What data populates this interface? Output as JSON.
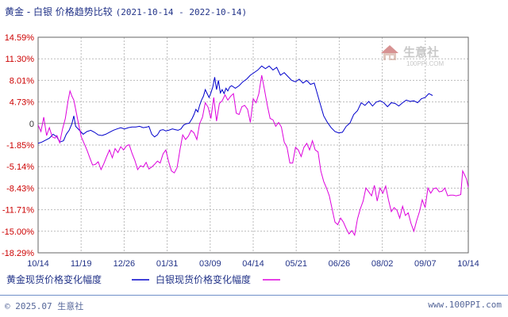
{
  "header": {
    "title": "黄金 - 白银 价格趋势比较",
    "date_range": "(2021-10-14 - 2022-10-14)"
  },
  "footer": {
    "copyright": "© 2025.07 生意社",
    "website": "www.100PPI.com"
  },
  "watermark": {
    "brand": "生意社",
    "url": "100PPI.COM"
  },
  "colors": {
    "gold": "#0000cc",
    "silver": "#dd00dd",
    "tick_label": "#cc0000",
    "grid": "#bbbbbb",
    "axis": "#666666"
  },
  "chart_data": {
    "type": "line",
    "title": "黄金 - 白银 价格趋势比较",
    "xlabel": "",
    "ylabel": "",
    "ylim": [
      -18.29,
      14.59
    ],
    "yticks": [
      "14.59%",
      "11.30%",
      "8.01%",
      "4.73%",
      "0",
      "-1.85%",
      "-5.14%",
      "-8.43%",
      "-11.71%",
      "-15.00%",
      "-18.29%"
    ],
    "x_tick_labels": [
      "10/14",
      "11/19",
      "12/26",
      "01/31",
      "03/09",
      "04/14",
      "05/21",
      "06/26",
      "08/02",
      "09/07",
      "10/14"
    ],
    "legend_position": "bottom-left",
    "grid": true,
    "series": [
      {
        "name": "黄金现货价格变化幅度",
        "values": [
          [
            0,
            -1.6
          ],
          [
            4,
            -1.4
          ],
          [
            8,
            -1.1
          ],
          [
            12,
            -0.8
          ],
          [
            16,
            -0.2
          ],
          [
            20,
            -0.6
          ],
          [
            23,
            -1.4
          ],
          [
            27,
            -1.2
          ],
          [
            30,
            -0.2
          ],
          [
            33,
            0.4
          ],
          [
            36,
            1.4
          ],
          [
            38,
            2.6
          ],
          [
            40,
            1.0
          ],
          [
            44,
            0.4
          ],
          [
            48,
            -0.2
          ],
          [
            52,
            0.2
          ],
          [
            56,
            0.4
          ],
          [
            60,
            0.1
          ],
          [
            64,
            -0.3
          ],
          [
            68,
            -0.4
          ],
          [
            72,
            -0.2
          ],
          [
            76,
            0.1
          ],
          [
            80,
            0.4
          ],
          [
            84,
            0.6
          ],
          [
            88,
            0.8
          ],
          [
            92,
            0.6
          ],
          [
            96,
            0.8
          ],
          [
            100,
            0.9
          ],
          [
            104,
            0.9
          ],
          [
            108,
            1.0
          ],
          [
            112,
            0.8
          ],
          [
            116,
            0.9
          ],
          [
            118,
            1.0
          ],
          [
            121,
            -0.2
          ],
          [
            124,
            -0.6
          ],
          [
            127,
            -0.3
          ],
          [
            130,
            0.4
          ],
          [
            133,
            0.5
          ],
          [
            136,
            0.3
          ],
          [
            139,
            0.4
          ],
          [
            143,
            0.6
          ],
          [
            146,
            0.5
          ],
          [
            149,
            0.4
          ],
          [
            152,
            0.6
          ],
          [
            155,
            1.2
          ],
          [
            158,
            1.4
          ],
          [
            161,
            1.5
          ],
          [
            164,
            2.2
          ],
          [
            166,
            2.8
          ],
          [
            168,
            3.6
          ],
          [
            170,
            3.2
          ],
          [
            172,
            4.2
          ],
          [
            174,
            5.0
          ],
          [
            176,
            5.6
          ],
          [
            178,
            6.6
          ],
          [
            180,
            6.0
          ],
          [
            182,
            5.4
          ],
          [
            184,
            6.1
          ],
          [
            186,
            7.0
          ],
          [
            188,
            8.5
          ],
          [
            190,
            6.6
          ],
          [
            192,
            8.0
          ],
          [
            194,
            6.1
          ],
          [
            196,
            6.6
          ],
          [
            198,
            6.0
          ],
          [
            200,
            6.8
          ],
          [
            202,
            6.4
          ],
          [
            204,
            7.0
          ],
          [
            206,
            7.2
          ],
          [
            210,
            6.8
          ],
          [
            214,
            7.2
          ],
          [
            218,
            7.8
          ],
          [
            222,
            8.2
          ],
          [
            226,
            8.8
          ],
          [
            230,
            9.2
          ],
          [
            234,
            9.6
          ],
          [
            238,
            10.2
          ],
          [
            242,
            9.8
          ],
          [
            246,
            10.2
          ],
          [
            250,
            9.6
          ],
          [
            254,
            10.0
          ],
          [
            258,
            8.8
          ],
          [
            262,
            9.2
          ],
          [
            266,
            8.6
          ],
          [
            270,
            8.0
          ],
          [
            274,
            7.8
          ],
          [
            278,
            8.2
          ],
          [
            282,
            7.6
          ],
          [
            286,
            8.0
          ],
          [
            290,
            7.4
          ],
          [
            294,
            7.6
          ],
          [
            296,
            6.6
          ],
          [
            300,
            4.6
          ],
          [
            304,
            2.6
          ],
          [
            308,
            1.6
          ],
          [
            312,
            0.8
          ],
          [
            316,
            0.2
          ],
          [
            320,
            0.0
          ],
          [
            324,
            0.1
          ],
          [
            328,
            1.0
          ],
          [
            332,
            1.5
          ],
          [
            336,
            2.8
          ],
          [
            340,
            3.4
          ],
          [
            344,
            4.6
          ],
          [
            348,
            4.2
          ],
          [
            352,
            4.8
          ],
          [
            356,
            4.1
          ],
          [
            360,
            4.7
          ],
          [
            364,
            4.9
          ],
          [
            368,
            4.6
          ],
          [
            372,
            4.0
          ],
          [
            376,
            4.6
          ],
          [
            380,
            4.5
          ],
          [
            384,
            4.1
          ],
          [
            388,
            4.6
          ],
          [
            392,
            5.0
          ],
          [
            396,
            4.8
          ],
          [
            400,
            4.9
          ],
          [
            404,
            4.6
          ],
          [
            408,
            5.2
          ],
          [
            412,
            5.4
          ],
          [
            416,
            6.0
          ],
          [
            420,
            5.7
          ]
        ]
      },
      {
        "name": "白银现货价格变化幅度",
        "values": [
          [
            0,
            1.2
          ],
          [
            3,
            0.2
          ],
          [
            6,
            2.4
          ],
          [
            9,
            -0.4
          ],
          [
            12,
            0.8
          ],
          [
            15,
            -0.6
          ],
          [
            18,
            -0.8
          ],
          [
            20,
            -0.4
          ],
          [
            23,
            -1.5
          ],
          [
            26,
            0.6
          ],
          [
            29,
            2.2
          ],
          [
            32,
            5.0
          ],
          [
            34,
            6.4
          ],
          [
            36,
            5.6
          ],
          [
            38,
            5.0
          ],
          [
            40,
            3.6
          ],
          [
            43,
            1.4
          ],
          [
            46,
            -0.6
          ],
          [
            49,
            -1.6
          ],
          [
            52,
            -2.6
          ],
          [
            55,
            -3.8
          ],
          [
            58,
            -4.9
          ],
          [
            61,
            -4.8
          ],
          [
            64,
            -4.4
          ],
          [
            67,
            -5.6
          ],
          [
            70,
            -4.7
          ],
          [
            73,
            -3.6
          ],
          [
            76,
            -2.6
          ],
          [
            79,
            -3.8
          ],
          [
            82,
            -2.4
          ],
          [
            85,
            -3.0
          ],
          [
            88,
            -2.1
          ],
          [
            91,
            -2.6
          ],
          [
            94,
            -2.0
          ],
          [
            97,
            -1.8
          ],
          [
            100,
            -3.1
          ],
          [
            103,
            -4.2
          ],
          [
            106,
            -5.6
          ],
          [
            109,
            -5.0
          ],
          [
            112,
            -5.2
          ],
          [
            115,
            -4.5
          ],
          [
            118,
            -5.5
          ],
          [
            121,
            -5.2
          ],
          [
            124,
            -4.8
          ],
          [
            127,
            -4.3
          ],
          [
            130,
            -4.6
          ],
          [
            133,
            -3.2
          ],
          [
            136,
            -2.6
          ],
          [
            139,
            -4.4
          ],
          [
            142,
            -5.8
          ],
          [
            145,
            -6.1
          ],
          [
            148,
            -5.3
          ],
          [
            151,
            -2.6
          ],
          [
            154,
            -0.3
          ],
          [
            157,
            -1.0
          ],
          [
            160,
            -0.5
          ],
          [
            163,
            0.4
          ],
          [
            166,
            0.0
          ],
          [
            169,
            -1.0
          ],
          [
            172,
            1.4
          ],
          [
            175,
            2.4
          ],
          [
            178,
            4.6
          ],
          [
            181,
            3.9
          ],
          [
            184,
            2.2
          ],
          [
            187,
            5.4
          ],
          [
            190,
            1.8
          ],
          [
            193,
            4.5
          ],
          [
            196,
            4.9
          ],
          [
            199,
            5.8
          ],
          [
            202,
            5.0
          ],
          [
            205,
            5.6
          ],
          [
            208,
            6.0
          ],
          [
            211,
            3.0
          ],
          [
            214,
            2.8
          ],
          [
            217,
            4.0
          ],
          [
            220,
            4.2
          ],
          [
            223,
            3.6
          ],
          [
            226,
            1.6
          ],
          [
            229,
            5.2
          ],
          [
            232,
            4.6
          ],
          [
            235,
            6.0
          ],
          [
            238,
            8.8
          ],
          [
            241,
            6.6
          ],
          [
            244,
            4.2
          ],
          [
            247,
            2.2
          ],
          [
            250,
            2.0
          ],
          [
            253,
            1.0
          ],
          [
            256,
            1.6
          ],
          [
            259,
            0.9
          ],
          [
            262,
            -1.4
          ],
          [
            265,
            -2.2
          ],
          [
            268,
            -4.6
          ],
          [
            271,
            -4.6
          ],
          [
            274,
            -2.2
          ],
          [
            277,
            -2.6
          ],
          [
            280,
            -3.6
          ],
          [
            283,
            -2.2
          ],
          [
            286,
            -1.6
          ],
          [
            289,
            -2.6
          ],
          [
            292,
            -1.2
          ],
          [
            295,
            -2.6
          ],
          [
            298,
            -2.9
          ],
          [
            301,
            -5.8
          ],
          [
            304,
            -7.4
          ],
          [
            307,
            -8.4
          ],
          [
            310,
            -9.6
          ],
          [
            313,
            -11.6
          ],
          [
            316,
            -13.6
          ],
          [
            319,
            -14.0
          ],
          [
            322,
            -13.0
          ],
          [
            325,
            -13.6
          ],
          [
            328,
            -14.6
          ],
          [
            331,
            -15.4
          ],
          [
            334,
            -14.9
          ],
          [
            337,
            -15.6
          ],
          [
            340,
            -13.1
          ],
          [
            343,
            -11.6
          ],
          [
            346,
            -10.4
          ],
          [
            349,
            -8.4
          ],
          [
            352,
            -9.0
          ],
          [
            355,
            -9.6
          ],
          [
            358,
            -8.0
          ],
          [
            361,
            -10.4
          ],
          [
            364,
            -8.4
          ],
          [
            367,
            -9.2
          ],
          [
            370,
            -8.1
          ],
          [
            373,
            -10.2
          ],
          [
            376,
            -12.0
          ],
          [
            379,
            -11.4
          ],
          [
            382,
            -11.8
          ],
          [
            385,
            -13.0
          ],
          [
            388,
            -11.2
          ],
          [
            391,
            -12.6
          ],
          [
            394,
            -12.2
          ],
          [
            397,
            -13.8
          ],
          [
            400,
            -15.0
          ],
          [
            403,
            -13.4
          ],
          [
            406,
            -12.0
          ],
          [
            409,
            -10.2
          ],
          [
            412,
            -11.4
          ],
          [
            415,
            -8.4
          ],
          [
            418,
            -9.2
          ],
          [
            421,
            -8.5
          ],
          [
            424,
            -8.4
          ],
          [
            427,
            -9.0
          ],
          [
            430,
            -8.9
          ],
          [
            433,
            -8.4
          ],
          [
            436,
            -9.6
          ],
          [
            439,
            -9.5
          ],
          [
            442,
            -9.5
          ],
          [
            445,
            -9.6
          ],
          [
            448,
            -9.5
          ],
          [
            450,
            -9.4
          ],
          [
            452,
            -5.8
          ],
          [
            454,
            -6.4
          ],
          [
            456,
            -7.0
          ],
          [
            458,
            -8.3
          ]
        ]
      }
    ]
  }
}
